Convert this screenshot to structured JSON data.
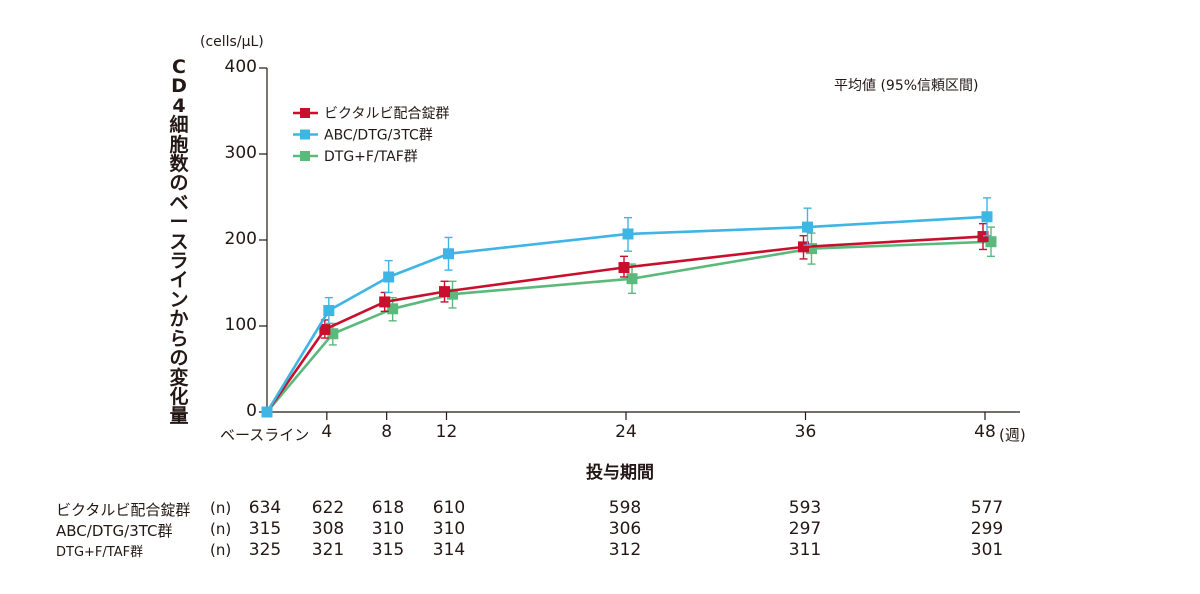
{
  "chart_data": {
    "type": "line",
    "ylabel": "CD4細胞数のベースラインからの変化量",
    "yunit": "(cells/μL)",
    "xlabel": "投与期間",
    "note": "平均値 (95%信頼区間)",
    "ylim": [
      0,
      400
    ],
    "yticks": [
      0,
      100,
      200,
      300,
      400
    ],
    "x": [
      0,
      4,
      8,
      12,
      24,
      36,
      48
    ],
    "xtick_labels": [
      "ベースライン",
      "4",
      "8",
      "12",
      "24",
      "36",
      "48"
    ],
    "xunit": "(週)",
    "legend_position": "top-left",
    "series": [
      {
        "name": "ビクタルビ配合錠群",
        "color": "#c8102e",
        "values": [
          0,
          96,
          128,
          140,
          168,
          192,
          204
        ],
        "ci_low": [
          0,
          86,
          117,
          128,
          157,
          178,
          189
        ],
        "ci_high": [
          0,
          107,
          139,
          152,
          181,
          205,
          219
        ],
        "n": [
          "634",
          "622",
          "618",
          "610",
          "598",
          "593",
          "577"
        ]
      },
      {
        "name": "ABC/DTG/3TC群",
        "color": "#3fb5e4",
        "values": [
          0,
          118,
          157,
          184,
          207,
          215,
          227
        ],
        "ci_low": [
          0,
          103,
          139,
          165,
          187,
          194,
          205
        ],
        "ci_high": [
          0,
          133,
          176,
          203,
          226,
          237,
          249
        ],
        "n": [
          "315",
          "308",
          "310",
          "310",
          "306",
          "297",
          "299"
        ]
      },
      {
        "name": "DTG+F/TAF群",
        "color": "#5cb97c",
        "values": [
          0,
          91,
          120,
          137,
          155,
          190,
          198
        ],
        "ci_low": [
          0,
          78,
          106,
          121,
          138,
          172,
          181
        ],
        "ci_high": [
          0,
          103,
          133,
          152,
          172,
          208,
          215
        ],
        "n": [
          "325",
          "321",
          "315",
          "314",
          "312",
          "311",
          "301"
        ]
      }
    ],
    "n_label": "(n)"
  }
}
